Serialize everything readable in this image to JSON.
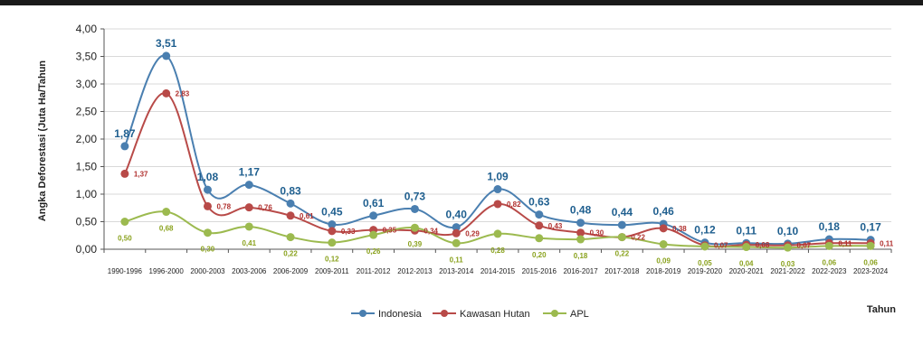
{
  "chart_data": {
    "type": "line",
    "title": "",
    "xlabel": "Tahun",
    "ylabel": "Angka Deforestasi  (Juta Ha/Tahun",
    "ylim": [
      0,
      4
    ],
    "yticks": [
      "0,00",
      "0,50",
      "1,00",
      "1,50",
      "2,00",
      "2,50",
      "3,00",
      "3,50",
      "4,00"
    ],
    "grid": true,
    "legend": "bottom-center",
    "categories": [
      "1990-1996",
      "1996-2000",
      "2000-2003",
      "2003-2006",
      "2006-2009",
      "2009-2011",
      "2011-2012",
      "2012-2013",
      "2013-2014",
      "2014-2015",
      "2015-2016",
      "2016-2017",
      "2017-2018",
      "2018-2019",
      "2019-2020",
      "2020-2021",
      "2021-2022",
      "2022-2023",
      "2023-2024"
    ],
    "series": [
      {
        "name": "Indonesia",
        "color": "#4a7fb0",
        "label_color": "#1f5f8f",
        "values": [
          1.87,
          3.51,
          1.08,
          1.17,
          0.83,
          0.45,
          0.61,
          0.73,
          0.4,
          1.09,
          0.63,
          0.48,
          0.44,
          0.46,
          0.12,
          0.11,
          0.1,
          0.18,
          0.17
        ],
        "labels": [
          "1,87",
          "3,51",
          "1,08",
          "1,17",
          "0,83",
          "0,45",
          "0,61",
          "0,73",
          "0,40",
          "1,09",
          "0,63",
          "0,48",
          "0,44",
          "0,46",
          "0,12",
          "0,11",
          "0,10",
          "0,18",
          "0,17"
        ]
      },
      {
        "name": "Kawasan Hutan",
        "color": "#b84a48",
        "label_color": "#b0302e",
        "values": [
          1.37,
          2.83,
          0.78,
          0.76,
          0.61,
          0.33,
          0.35,
          0.34,
          0.29,
          0.82,
          0.43,
          0.3,
          0.22,
          0.38,
          0.07,
          0.08,
          0.07,
          0.11,
          0.11
        ],
        "labels": [
          "1,37",
          "2,83",
          "0,78",
          "0,76",
          "0,61",
          "0,33",
          "0,35",
          "0,34",
          "0,29",
          "0,82",
          "0,43",
          "0,30",
          "0,22",
          "0,38",
          "0,07",
          "0,08",
          "0,07",
          "0,11",
          "0,11"
        ]
      },
      {
        "name": "APL",
        "color": "#9cba4f",
        "label_color": "#8aa21e",
        "values": [
          0.5,
          0.68,
          0.3,
          0.41,
          0.22,
          0.12,
          0.26,
          0.39,
          0.11,
          0.28,
          0.2,
          0.18,
          0.22,
          0.09,
          0.05,
          0.04,
          0.03,
          0.06,
          0.06
        ],
        "labels": [
          "0,50",
          "0,68",
          "0,30",
          "0,41",
          "0,22",
          "0,12",
          "0,26",
          "0,39",
          "0,11",
          "0,28",
          "0,20",
          "0,18",
          "0,22",
          "0,09",
          "0,05",
          "0,04",
          "0,03",
          "0,06",
          "0,06"
        ]
      }
    ]
  }
}
